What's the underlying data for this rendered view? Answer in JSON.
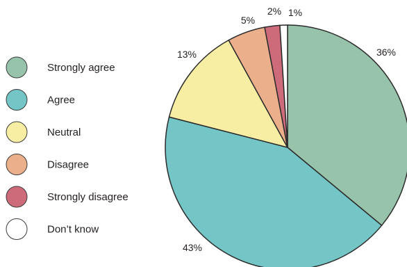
{
  "chart_data": {
    "type": "pie",
    "categories": [
      "Strongly agree",
      "Agree",
      "Neutral",
      "Disagree",
      "Strongly disagree",
      "Don’t know"
    ],
    "values": [
      36,
      43,
      13,
      5,
      2,
      1
    ],
    "value_labels": [
      "36%",
      "43%",
      "13%",
      "5%",
      "2%",
      "1%"
    ],
    "colors": [
      "#97c3aa",
      "#74c5c6",
      "#f7eea4",
      "#ebb08b",
      "#cd6b7b",
      "#ffffff"
    ],
    "start_angle_deg": 0,
    "direction": "clockwise",
    "legend": {
      "position": "left",
      "marker": "circle"
    }
  }
}
